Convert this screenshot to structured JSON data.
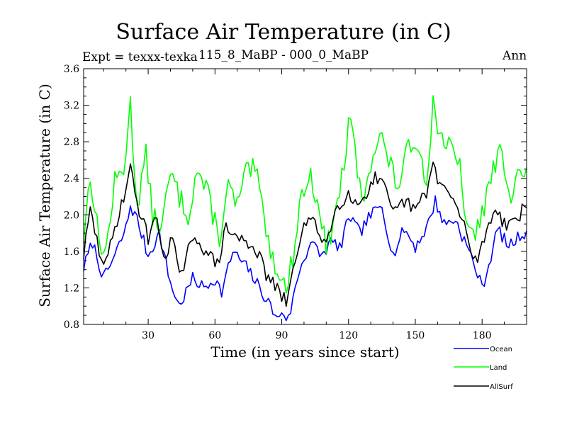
{
  "chart_data": {
    "type": "line",
    "title": "Surface Air Temperature (in C)",
    "subtitle": "115_8_MaBP - 000_0_MaBP",
    "expt_label": "Expt = texxx-texka",
    "season": "Ann",
    "xlabel": "Time (in years since start)",
    "ylabel": "Surface Air Temperature (in C)",
    "xlim": [
      1,
      200
    ],
    "ylim": [
      0.8,
      3.6
    ],
    "xticks": [
      30,
      60,
      90,
      120,
      150,
      180
    ],
    "yticks": [
      0.8,
      1.2,
      1.6,
      2.0,
      2.4,
      2.8,
      3.2,
      3.6
    ],
    "legend_position": "bottom-right",
    "series": [
      {
        "name": "Ocean",
        "color": "#0000ff",
        "key_points": [
          [
            1,
            1.42
          ],
          [
            5,
            1.7
          ],
          [
            10,
            1.3
          ],
          [
            15,
            1.55
          ],
          [
            20,
            1.85
          ],
          [
            22,
            2.1
          ],
          [
            25,
            1.95
          ],
          [
            30,
            1.55
          ],
          [
            35,
            1.8
          ],
          [
            40,
            1.25
          ],
          [
            44,
            1.0
          ],
          [
            50,
            1.3
          ],
          [
            55,
            1.2
          ],
          [
            60,
            1.3
          ],
          [
            63,
            1.15
          ],
          [
            68,
            1.6
          ],
          [
            75,
            1.4
          ],
          [
            80,
            1.2
          ],
          [
            85,
            1.0
          ],
          [
            88,
            0.85
          ],
          [
            90,
            0.95
          ],
          [
            93,
            0.85
          ],
          [
            98,
            1.4
          ],
          [
            103,
            1.7
          ],
          [
            108,
            1.55
          ],
          [
            112,
            1.7
          ],
          [
            117,
            1.65
          ],
          [
            120,
            2.0
          ],
          [
            125,
            1.8
          ],
          [
            130,
            2.0
          ],
          [
            135,
            2.1
          ],
          [
            140,
            1.55
          ],
          [
            145,
            1.85
          ],
          [
            150,
            1.65
          ],
          [
            155,
            1.85
          ],
          [
            159,
            2.15
          ],
          [
            163,
            1.9
          ],
          [
            168,
            1.95
          ],
          [
            175,
            1.55
          ],
          [
            178,
            1.35
          ],
          [
            180,
            1.2
          ],
          [
            183,
            1.45
          ],
          [
            187,
            1.85
          ],
          [
            192,
            1.65
          ],
          [
            196,
            1.75
          ],
          [
            200,
            1.82
          ]
        ]
      },
      {
        "name": "Land",
        "color": "#00ff00",
        "key_points": [
          [
            1,
            1.75
          ],
          [
            4,
            2.45
          ],
          [
            8,
            1.7
          ],
          [
            11,
            1.6
          ],
          [
            15,
            2.35
          ],
          [
            19,
            2.5
          ],
          [
            22,
            3.2
          ],
          [
            25,
            2.1
          ],
          [
            29,
            2.65
          ],
          [
            32,
            2.0
          ],
          [
            36,
            1.85
          ],
          [
            40,
            2.45
          ],
          [
            44,
            2.2
          ],
          [
            48,
            2.0
          ],
          [
            52,
            2.5
          ],
          [
            57,
            2.2
          ],
          [
            62,
            1.75
          ],
          [
            66,
            2.3
          ],
          [
            70,
            2.1
          ],
          [
            74,
            2.45
          ],
          [
            78,
            2.5
          ],
          [
            82,
            2.0
          ],
          [
            86,
            1.5
          ],
          [
            89,
            1.4
          ],
          [
            92,
            1.15
          ],
          [
            95,
            1.55
          ],
          [
            99,
            2.25
          ],
          [
            103,
            2.4
          ],
          [
            107,
            2.1
          ],
          [
            110,
            1.6
          ],
          [
            114,
            2.0
          ],
          [
            118,
            2.55
          ],
          [
            120,
            2.95
          ],
          [
            122,
            2.9
          ],
          [
            126,
            2.1
          ],
          [
            130,
            2.6
          ],
          [
            134,
            2.9
          ],
          [
            138,
            2.6
          ],
          [
            142,
            2.3
          ],
          [
            146,
            2.65
          ],
          [
            150,
            2.85
          ],
          [
            155,
            2.4
          ],
          [
            158,
            3.2
          ],
          [
            161,
            2.9
          ],
          [
            165,
            2.75
          ],
          [
            170,
            2.5
          ],
          [
            174,
            1.75
          ],
          [
            177,
            1.8
          ],
          [
            181,
            2.1
          ],
          [
            184,
            2.4
          ],
          [
            188,
            2.7
          ],
          [
            193,
            2.25
          ],
          [
            196,
            2.5
          ],
          [
            198,
            2.4
          ],
          [
            200,
            2.45
          ]
        ]
      },
      {
        "name": "AllSurf",
        "color": "#000000",
        "key_points": [
          [
            1,
            1.55
          ],
          [
            4,
            2.05
          ],
          [
            8,
            1.6
          ],
          [
            11,
            1.45
          ],
          [
            16,
            1.95
          ],
          [
            20,
            2.3
          ],
          [
            22,
            2.5
          ],
          [
            26,
            2.05
          ],
          [
            30,
            1.75
          ],
          [
            33,
            2.0
          ],
          [
            37,
            1.55
          ],
          [
            41,
            1.75
          ],
          [
            44,
            1.3
          ],
          [
            48,
            1.6
          ],
          [
            52,
            1.75
          ],
          [
            56,
            1.6
          ],
          [
            61,
            1.45
          ],
          [
            65,
            1.85
          ],
          [
            70,
            1.75
          ],
          [
            74,
            1.7
          ],
          [
            78,
            1.65
          ],
          [
            83,
            1.35
          ],
          [
            86,
            1.25
          ],
          [
            90,
            1.1
          ],
          [
            92,
            1.05
          ],
          [
            95,
            1.35
          ],
          [
            99,
            1.85
          ],
          [
            103,
            1.95
          ],
          [
            107,
            1.8
          ],
          [
            110,
            1.7
          ],
          [
            115,
            2.1
          ],
          [
            120,
            2.25
          ],
          [
            124,
            2.1
          ],
          [
            128,
            2.25
          ],
          [
            132,
            2.4
          ],
          [
            136,
            2.3
          ],
          [
            140,
            2.0
          ],
          [
            145,
            2.15
          ],
          [
            150,
            2.05
          ],
          [
            155,
            2.25
          ],
          [
            158,
            2.55
          ],
          [
            161,
            2.35
          ],
          [
            166,
            2.2
          ],
          [
            171,
            1.95
          ],
          [
            175,
            1.6
          ],
          [
            178,
            1.5
          ],
          [
            181,
            1.75
          ],
          [
            186,
            2.1
          ],
          [
            190,
            1.9
          ],
          [
            195,
            1.95
          ],
          [
            200,
            2.1
          ]
        ]
      }
    ]
  }
}
